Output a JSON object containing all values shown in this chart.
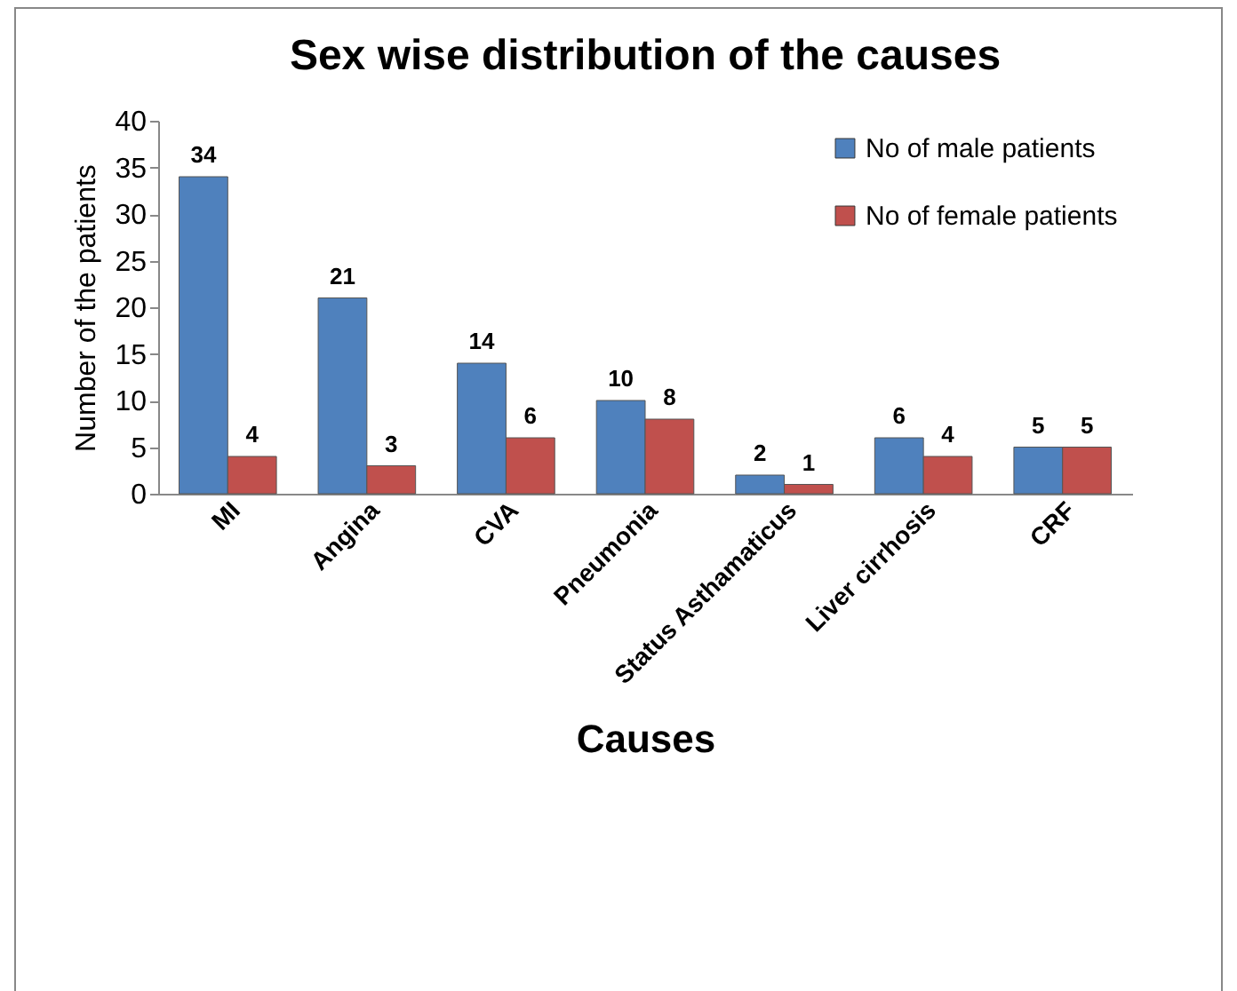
{
  "chart_data": {
    "type": "bar",
    "title": "Sex wise distribution of the causes",
    "xlabel": "Causes",
    "ylabel": "Number of the patients",
    "categories": [
      "MI",
      "Angina",
      "CVA",
      "Pneumonia",
      "Status Asthamaticus",
      "Liver cirrhosis",
      "CRF"
    ],
    "series": [
      {
        "name": "No of male patients",
        "color": "#4f81bd",
        "values": [
          34,
          21,
          14,
          10,
          2,
          6,
          5
        ]
      },
      {
        "name": "No of female patients",
        "color": "#c0504d",
        "values": [
          4,
          3,
          6,
          8,
          1,
          4,
          5
        ]
      }
    ],
    "ylim": [
      0,
      40
    ],
    "yticks": [
      0,
      5,
      10,
      15,
      20,
      25,
      30,
      35,
      40
    ],
    "grid": false,
    "legend": "top right",
    "data_labels": true
  }
}
